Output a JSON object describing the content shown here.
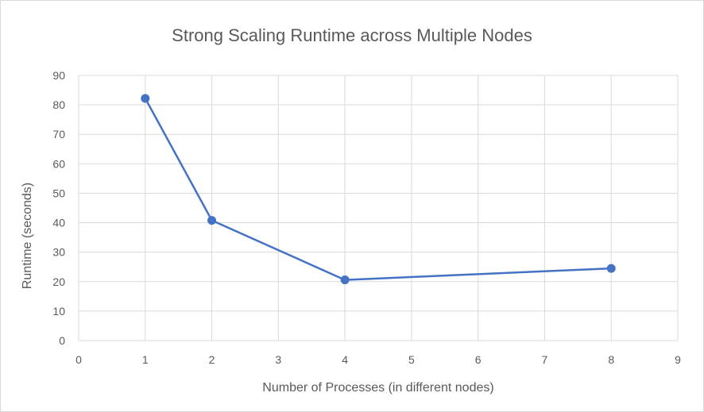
{
  "chart_data": {
    "type": "line",
    "title": "Strong Scaling Runtime across Multiple Nodes",
    "xlabel": "Number of Processes (in different nodes)",
    "ylabel": "Runtime (seconds)",
    "xlim": [
      0,
      9
    ],
    "ylim": [
      0,
      90
    ],
    "x_ticks": [
      0,
      1,
      2,
      3,
      4,
      5,
      6,
      7,
      8,
      9
    ],
    "y_ticks": [
      0,
      10,
      20,
      30,
      40,
      50,
      60,
      70,
      80,
      90
    ],
    "grid": true,
    "legend": "none",
    "series": [
      {
        "x": [
          1,
          2,
          4,
          8
        ],
        "y": [
          82.2,
          40.8,
          20.6,
          24.5
        ],
        "color": "#4472c4"
      }
    ]
  }
}
